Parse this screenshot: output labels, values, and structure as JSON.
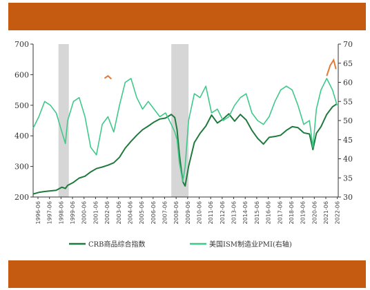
{
  "chart_data": {
    "type": "line",
    "colors": {
      "crb": "#1e7a3c",
      "pmi": "#3ec98a",
      "recession": "#cfcfcf",
      "band": "#c55a11",
      "spike": "#e07b39"
    },
    "y_left": {
      "ylim": [
        200,
        700
      ],
      "ticks": [
        "200",
        "300",
        "400",
        "500",
        "600",
        "700"
      ]
    },
    "y_right": {
      "ylim": [
        30,
        70
      ],
      "ticks": [
        "30",
        "35",
        "40",
        "45",
        "50",
        "55",
        "60",
        "65",
        "70"
      ]
    },
    "x_range": [
      1996,
      2022.5
    ],
    "x_ticks": [
      "1996-06",
      "1997-06",
      "1998-06",
      "1999-06",
      "2000-06",
      "2001-06",
      "2002-06",
      "2003-06",
      "2004-06",
      "2005-06",
      "2006-06",
      "2007-06",
      "2008-06",
      "2009-06",
      "2010-06",
      "2011-06",
      "2012-06",
      "2013-06",
      "2014-06",
      "2015-06",
      "2016-06",
      "2017-06",
      "2018-06",
      "2019-06",
      "2020-06",
      "2021-06",
      "2022-06"
    ],
    "recession_shading": [
      [
        1998.2,
        1999.1
      ],
      [
        2008.0,
        2009.5
      ]
    ],
    "series": [
      {
        "name": "CRB商品综合指数",
        "axis": "left",
        "x": [
          1996.0,
          1996.5,
          1997.0,
          1997.5,
          1998.0,
          1998.5,
          1998.8,
          1999.0,
          1999.5,
          2000.0,
          2000.5,
          2001.0,
          2001.5,
          2002.0,
          2002.5,
          2003.0,
          2003.5,
          2004.0,
          2004.5,
          2005.0,
          2005.5,
          2006.0,
          2006.5,
          2007.0,
          2007.5,
          2008.0,
          2008.3,
          2008.5,
          2008.7,
          2009.0,
          2009.2,
          2009.5,
          2010.0,
          2010.5,
          2011.0,
          2011.5,
          2012.0,
          2012.5,
          2013.0,
          2013.5,
          2014.0,
          2014.5,
          2015.0,
          2015.5,
          2016.0,
          2016.5,
          2017.0,
          2017.5,
          2018.0,
          2018.5,
          2019.0,
          2019.5,
          2020.0,
          2020.3,
          2020.6,
          2021.0,
          2021.5,
          2022.0,
          2022.4
        ],
        "values": [
          210,
          215,
          218,
          220,
          222,
          232,
          228,
          238,
          248,
          262,
          268,
          282,
          293,
          298,
          304,
          312,
          330,
          360,
          382,
          402,
          420,
          432,
          445,
          455,
          458,
          470,
          460,
          420,
          340,
          250,
          236,
          300,
          378,
          408,
          432,
          468,
          442,
          455,
          472,
          448,
          470,
          452,
          418,
          392,
          373,
          395,
          398,
          402,
          418,
          430,
          427,
          410,
          406,
          355,
          408,
          430,
          470,
          495,
          505
        ]
      },
      {
        "name": "美国ISM制造业PMI(右轴)",
        "axis": "right",
        "x": [
          1996.0,
          1996.5,
          1997.0,
          1997.5,
          1998.0,
          1998.5,
          1998.8,
          1999.0,
          1999.5,
          2000.0,
          2000.5,
          2001.0,
          2001.5,
          2002.0,
          2002.5,
          2003.0,
          2003.5,
          2004.0,
          2004.5,
          2005.0,
          2005.5,
          2006.0,
          2006.5,
          2007.0,
          2007.5,
          2008.0,
          2008.3,
          2008.5,
          2008.7,
          2009.0,
          2009.2,
          2009.5,
          2010.0,
          2010.5,
          2011.0,
          2011.5,
          2012.0,
          2012.5,
          2013.0,
          2013.5,
          2014.0,
          2014.5,
          2015.0,
          2015.5,
          2016.0,
          2016.5,
          2017.0,
          2017.5,
          2018.0,
          2018.5,
          2019.0,
          2019.5,
          2020.0,
          2020.3,
          2020.6,
          2021.0,
          2021.5,
          2022.0,
          2022.4
        ],
        "values": [
          48,
          51,
          55,
          54,
          52,
          47,
          44,
          50,
          55,
          56,
          51,
          43,
          41,
          49,
          51,
          47,
          54,
          60,
          61,
          56,
          53,
          55,
          53,
          51,
          52,
          49,
          47,
          45,
          39,
          34,
          38,
          50,
          57,
          56,
          59,
          52,
          53,
          50,
          51,
          54,
          56,
          57,
          52,
          50,
          49,
          51,
          55,
          58,
          59,
          58,
          54,
          49,
          50,
          43,
          53,
          58,
          61,
          58,
          54
        ]
      }
    ],
    "spikes": [
      {
        "x": [
          2002.2,
          2002.5,
          2002.8
        ],
        "values": [
          588,
          596,
          586
        ]
      },
      {
        "x": [
          2021.5,
          2021.8,
          2022.1,
          2022.3
        ],
        "values": [
          596,
          630,
          648,
          618
        ]
      }
    ],
    "legend": [
      {
        "label": "CRB商品综合指数",
        "color": "#1e7a3c"
      },
      {
        "label": "美国ISM制造业PMI(右轴)",
        "color": "#3ec98a"
      }
    ]
  }
}
